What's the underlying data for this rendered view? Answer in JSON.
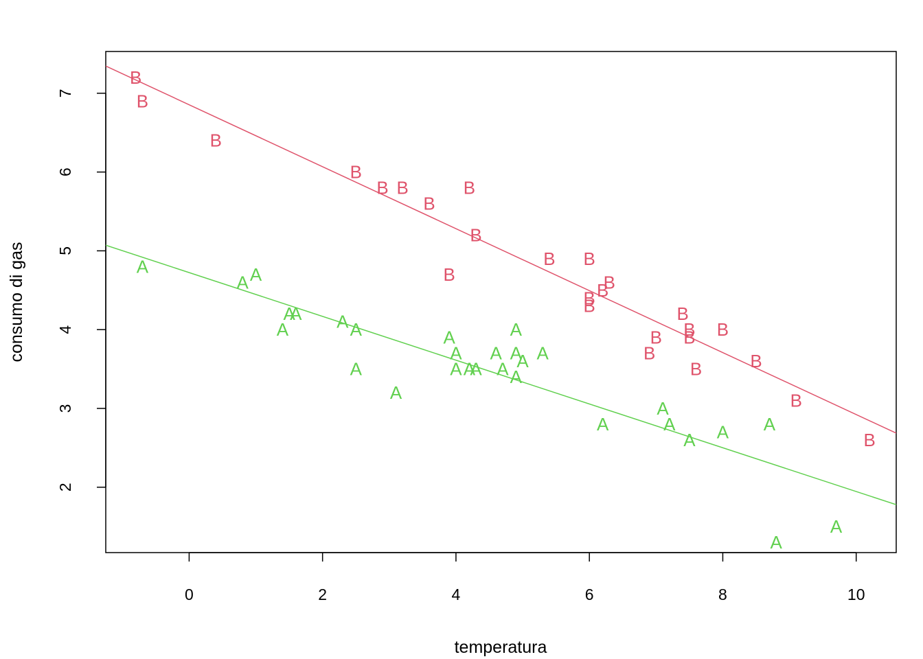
{
  "chart_data": {
    "type": "scatter",
    "title": "",
    "xlabel": "temperatura",
    "ylabel": "consumo di gas",
    "xlim": [
      -1.25,
      10.6
    ],
    "ylim": [
      1.17,
      7.53
    ],
    "xticks": [
      0,
      2,
      4,
      6,
      8,
      10
    ],
    "yticks": [
      2,
      3,
      4,
      5,
      6,
      7
    ],
    "grid": false,
    "legend": "none",
    "series": [
      {
        "marker": "A",
        "color": "#61D04F",
        "points": [
          [
            -0.7,
            4.8
          ],
          [
            0.8,
            4.6
          ],
          [
            1.0,
            4.7
          ],
          [
            1.4,
            4.0
          ],
          [
            1.5,
            4.2
          ],
          [
            1.6,
            4.2
          ],
          [
            2.3,
            4.1
          ],
          [
            2.5,
            4.0
          ],
          [
            2.5,
            3.5
          ],
          [
            3.1,
            3.2
          ],
          [
            3.9,
            3.9
          ],
          [
            4.0,
            3.5
          ],
          [
            4.0,
            3.7
          ],
          [
            4.2,
            3.5
          ],
          [
            4.3,
            3.5
          ],
          [
            4.6,
            3.7
          ],
          [
            4.7,
            3.5
          ],
          [
            4.9,
            3.4
          ],
          [
            4.9,
            3.7
          ],
          [
            4.9,
            4.0
          ],
          [
            5.0,
            3.6
          ],
          [
            5.3,
            3.7
          ],
          [
            6.2,
            2.8
          ],
          [
            7.1,
            3.0
          ],
          [
            7.2,
            2.8
          ],
          [
            7.5,
            2.6
          ],
          [
            8.0,
            2.7
          ],
          [
            8.7,
            2.8
          ],
          [
            8.8,
            1.3
          ],
          [
            9.7,
            1.5
          ]
        ],
        "fit": {
          "intercept": 4.724,
          "slope": -0.2779
        }
      },
      {
        "marker": "B",
        "color": "#DF536B",
        "points": [
          [
            -0.8,
            7.2
          ],
          [
            -0.7,
            6.9
          ],
          [
            0.4,
            6.4
          ],
          [
            2.5,
            6.0
          ],
          [
            2.9,
            5.8
          ],
          [
            3.2,
            5.8
          ],
          [
            3.6,
            5.6
          ],
          [
            3.9,
            4.7
          ],
          [
            4.2,
            5.8
          ],
          [
            4.3,
            5.2
          ],
          [
            5.4,
            4.9
          ],
          [
            6.0,
            4.9
          ],
          [
            6.0,
            4.3
          ],
          [
            6.0,
            4.4
          ],
          [
            6.2,
            4.5
          ],
          [
            6.3,
            4.6
          ],
          [
            6.9,
            3.7
          ],
          [
            7.0,
            3.9
          ],
          [
            7.4,
            4.2
          ],
          [
            7.5,
            4.0
          ],
          [
            7.5,
            3.9
          ],
          [
            7.6,
            3.5
          ],
          [
            8.0,
            4.0
          ],
          [
            8.5,
            3.6
          ],
          [
            9.1,
            3.1
          ],
          [
            10.2,
            2.6
          ]
        ],
        "fit": {
          "intercept": 6.854,
          "slope": -0.3932
        }
      }
    ]
  }
}
